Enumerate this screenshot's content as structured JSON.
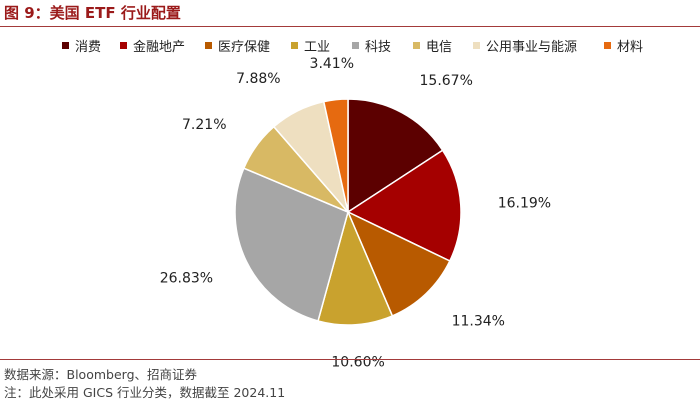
{
  "figure_title": "图 9：美国 ETF 行业配置",
  "chart_data": {
    "type": "pie",
    "title": "",
    "categories": [
      "消费",
      "金融地产",
      "医疗保健",
      "工业",
      "科技",
      "电信",
      "公用事业与能源",
      "材料"
    ],
    "values": [
      15.67,
      16.19,
      11.34,
      10.6,
      26.83,
      7.21,
      7.88,
      3.41
    ],
    "labels": [
      "15.67%",
      "16.19%",
      "11.34%",
      "10.60%",
      "26.83%",
      "7.21%",
      "7.88%",
      "3.41%"
    ],
    "colors": [
      "#5c0000",
      "#a50000",
      "#b85a00",
      "#c9a22e",
      "#a6a6a6",
      "#d8b964",
      "#eedfc0",
      "#e66a10"
    ],
    "start_angle": "12 o'clock",
    "direction": "clockwise",
    "legend_position": "top"
  },
  "footer": {
    "source": "数据来源：Bloomberg、招商证券",
    "note": "注：此处采用 GICS 行业分类，数据截至 2024.11"
  }
}
